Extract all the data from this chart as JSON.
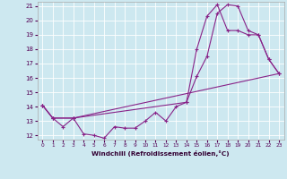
{
  "xlabel": "Windchill (Refroidissement éolien,°C)",
  "xlim": [
    -0.5,
    23.5
  ],
  "ylim": [
    11.7,
    21.3
  ],
  "xticks": [
    0,
    1,
    2,
    3,
    4,
    5,
    6,
    7,
    8,
    9,
    10,
    11,
    12,
    13,
    14,
    15,
    16,
    17,
    18,
    19,
    20,
    21,
    22,
    23
  ],
  "yticks": [
    12,
    13,
    14,
    15,
    16,
    17,
    18,
    19,
    20,
    21
  ],
  "bg_color": "#cde8f0",
  "grid_color": "#b0d8e8",
  "line_color": "#882288",
  "line1": {
    "x": [
      0,
      1,
      2,
      3,
      4,
      5,
      6,
      7,
      8,
      9,
      10,
      11,
      12,
      13,
      14,
      15,
      16,
      17,
      18,
      19,
      20,
      21,
      22,
      23
    ],
    "y": [
      14.1,
      13.2,
      12.6,
      13.2,
      12.1,
      12.0,
      11.8,
      12.6,
      12.5,
      12.5,
      13.0,
      13.6,
      13.0,
      14.0,
      14.3,
      16.1,
      17.5,
      20.5,
      21.1,
      21.0,
      19.3,
      19.0,
      17.3,
      16.3
    ]
  },
  "line2": {
    "x": [
      0,
      1,
      3,
      14,
      15,
      16,
      17,
      18,
      19,
      20,
      21,
      22,
      23
    ],
    "y": [
      14.1,
      13.2,
      13.2,
      14.3,
      18.0,
      20.3,
      21.1,
      19.3,
      19.3,
      19.0,
      19.0,
      17.3,
      16.3
    ]
  },
  "line3": {
    "x": [
      0,
      1,
      3,
      23
    ],
    "y": [
      14.1,
      13.2,
      13.2,
      16.3
    ]
  }
}
